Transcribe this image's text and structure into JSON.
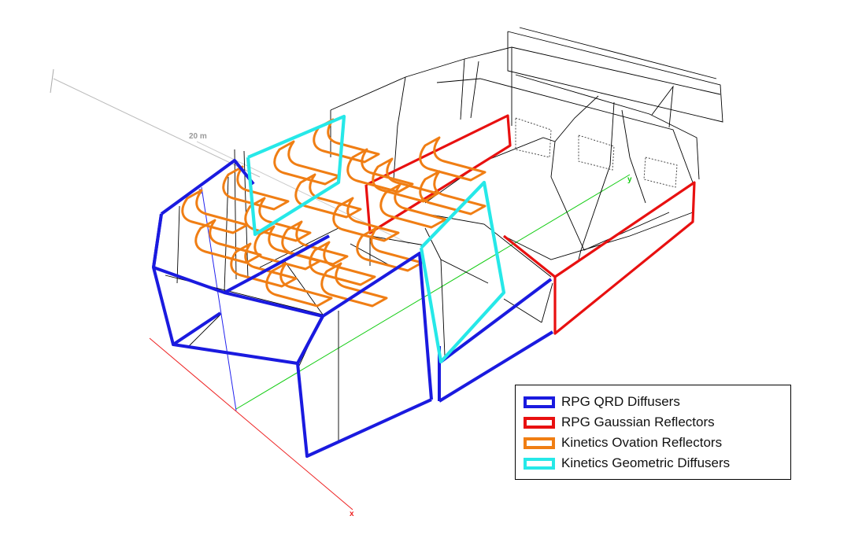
{
  "scale_label": "20 m",
  "axes": {
    "x": "x",
    "y": "y",
    "z": "z"
  },
  "legend": {
    "items": [
      {
        "label": "RPG QRD Diffusers",
        "color": "#1a1adf"
      },
      {
        "label": "RPG Gaussian Reflectors",
        "color": "#e81010"
      },
      {
        "label": "Kinetics Ovation Reflectors",
        "color": "#f07e14"
      },
      {
        "label": "Kinetics Geometric Diffusers",
        "color": "#26e8e8"
      }
    ]
  }
}
